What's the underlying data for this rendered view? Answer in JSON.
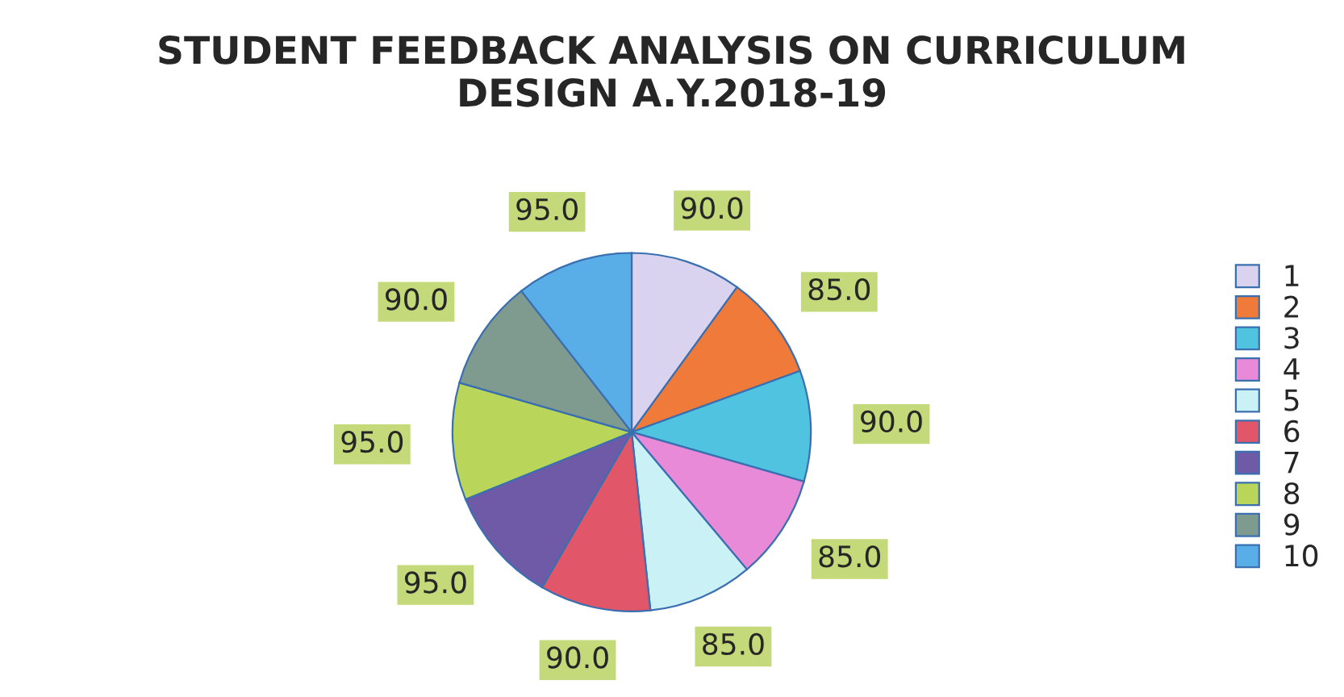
{
  "chart_data": {
    "type": "pie",
    "title": "STUDENT FEEDBACK ANALYSIS ON CURRICULUM\nDESIGN A.Y.2018-19",
    "categories": [
      "1",
      "2",
      "3",
      "4",
      "5",
      "6",
      "7",
      "8",
      "9",
      "10"
    ],
    "values": [
      90,
      85,
      90,
      85,
      85,
      90,
      95,
      95,
      90,
      95
    ],
    "value_labels": [
      "90.0",
      "85.0",
      "90.0",
      "85.0",
      "85.0",
      "90.0",
      "95.0",
      "95.0",
      "90.0",
      "95.0"
    ],
    "colors": [
      "#d9d3f0",
      "#f07a3a",
      "#4fc3e0",
      "#e98ad8",
      "#c9f1f6",
      "#e2566a",
      "#6f5aa8",
      "#b9d65a",
      "#7f9a8e",
      "#5aaee8"
    ],
    "legend": "right"
  }
}
